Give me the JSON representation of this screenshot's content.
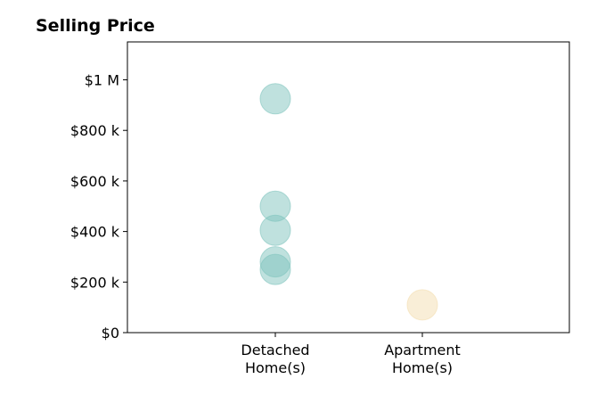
{
  "chart_data": {
    "type": "scatter",
    "title": "Selling Price",
    "xlabel": "",
    "ylabel": "",
    "categories": [
      [
        "Detached",
        "Home(s)"
      ],
      [
        "Apartment",
        "Home(s)"
      ]
    ],
    "ylim": [
      0,
      1150000
    ],
    "yticks": [
      {
        "value": 0,
        "label": "$0"
      },
      {
        "value": 200000,
        "label": "$200 k"
      },
      {
        "value": 400000,
        "label": "$400 k"
      },
      {
        "value": 600000,
        "label": "$600 k"
      },
      {
        "value": 800000,
        "label": "$800 k"
      },
      {
        "value": 1000000,
        "label": "$1 M"
      }
    ],
    "grid": false,
    "legend": "none",
    "series": [
      {
        "category_index": 0,
        "color": "#80c4be",
        "values": [
          925000,
          500000,
          405000,
          280000,
          250000
        ]
      },
      {
        "category_index": 1,
        "color": "#f3deb0",
        "values": [
          110000
        ]
      }
    ]
  }
}
